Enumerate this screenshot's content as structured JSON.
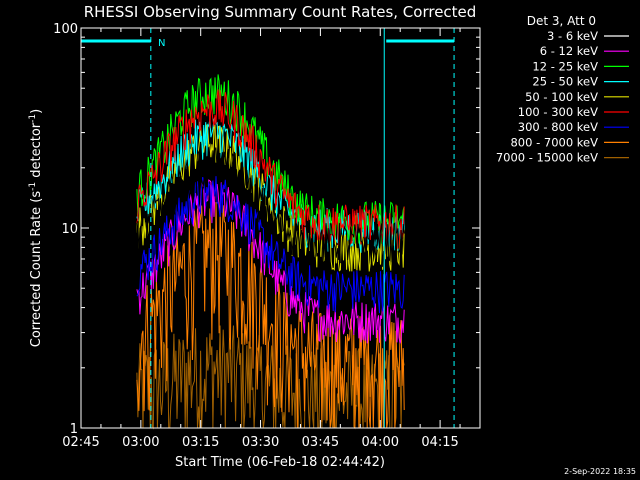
{
  "chart_data": {
    "type": "line",
    "title": "RHESSI Observing Summary Count Rates, Corrected",
    "xlabel": "Start Time (06-Feb-18 02:44:42)",
    "ylabel_main": "Corrected Count Rate (s",
    "ylabel_sup1": "-1",
    "ylabel_mid": " detector",
    "ylabel_sup2": "-1",
    "ylabel_end": ")",
    "yscale": "log",
    "ylim": [
      1,
      100
    ],
    "y_ticks": [
      {
        "value": 1,
        "label": "1"
      },
      {
        "value": 10,
        "label": "10"
      },
      {
        "value": 100,
        "label": "100"
      }
    ],
    "x_ticks": [
      "02:45",
      "03:00",
      "03:15",
      "03:30",
      "03:45",
      "04:00",
      "04:15"
    ],
    "x_tick_minutes": [
      0,
      15,
      30,
      45,
      60,
      75,
      90
    ],
    "xlim_minutes": [
      0,
      100
    ],
    "data_start_minute": 14,
    "data_end_minute": 81,
    "legend_header": "Det 3, Att 0",
    "flag_label": "N",
    "timestamp": "2-Sep-2022 18:35",
    "series": [
      {
        "name": "3 - 6 keV",
        "color": "#000000",
        "base": 8.5,
        "peak": 21
      },
      {
        "name": "6 - 12 keV",
        "color": "#ff00ff",
        "base": 3.5,
        "peak": 14
      },
      {
        "name": "12 - 25 keV",
        "color": "#00ff00",
        "base": 11,
        "peak": 48
      },
      {
        "name": "25 - 50 keV",
        "color": "#00ffff",
        "base": 10,
        "peak": 30
      },
      {
        "name": "50 - 100 keV",
        "color": "#e0e000",
        "base": 8,
        "peak": 27
      },
      {
        "name": "100 - 300 keV",
        "color": "#ff0000",
        "base": 10.5,
        "peak": 40
      },
      {
        "name": "300 - 800 keV",
        "color": "#0000ff",
        "base": 5,
        "peak": 15
      },
      {
        "name": "800 - 7000 keV",
        "color": "#ff8000",
        "base": 2.2,
        "peak": 8
      },
      {
        "name": "7000 - 15000 keV",
        "color": "#a06000",
        "base": 1.5,
        "peak": 2
      }
    ]
  }
}
